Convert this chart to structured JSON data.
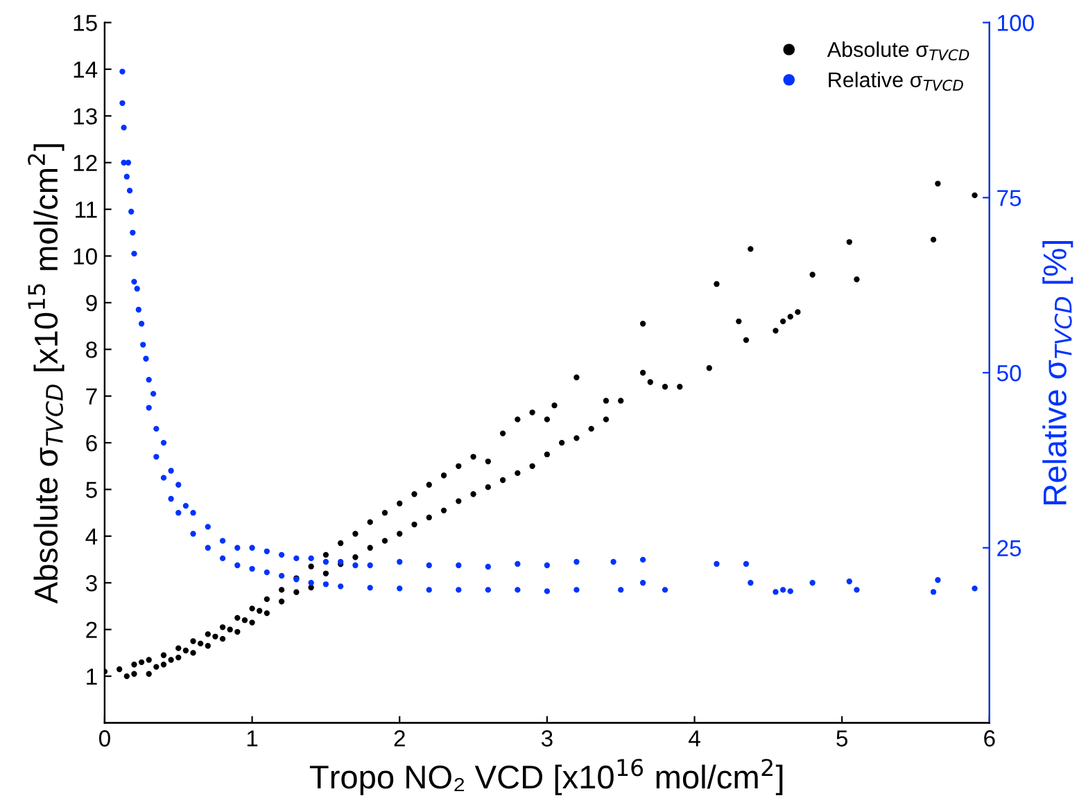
{
  "chart_data": {
    "type": "scatter",
    "xlabel": "Tropo NO₂ VCD [x10$^{16}$ mol/cm$^{2}$]",
    "ylabel": "Absolute σ$_{TVCD}$ [x10$^{15}$ mol/cm$^{2}$]",
    "y2label": "Relative σ$_{TVCD}$ [%]",
    "xlim": [
      0,
      6
    ],
    "xticks": [
      0,
      1,
      2,
      3,
      4,
      5,
      6
    ],
    "ylim": [
      0,
      15
    ],
    "yticks": [
      1,
      2,
      3,
      4,
      5,
      6,
      7,
      8,
      9,
      10,
      11,
      12,
      13,
      14,
      15
    ],
    "y2lim": [
      0,
      100
    ],
    "y2ticks": [
      25,
      50,
      75,
      100
    ],
    "grid": false,
    "legend": "top right",
    "marker": "circle",
    "series": [
      {
        "name": "Absolute σ$_{TVCD}$",
        "color": "#000000",
        "axis": "y",
        "x": [
          0.0,
          0.1,
          0.15,
          0.2,
          0.2,
          0.25,
          0.3,
          0.3,
          0.35,
          0.4,
          0.4,
          0.45,
          0.5,
          0.5,
          0.55,
          0.6,
          0.6,
          0.65,
          0.7,
          0.7,
          0.75,
          0.8,
          0.8,
          0.85,
          0.9,
          0.9,
          0.95,
          1.0,
          1.0,
          1.05,
          1.1,
          1.1,
          1.2,
          1.2,
          1.3,
          1.3,
          1.4,
          1.4,
          1.5,
          1.5,
          1.6,
          1.6,
          1.7,
          1.7,
          1.8,
          1.8,
          1.9,
          1.9,
          2.0,
          2.0,
          2.1,
          2.1,
          2.2,
          2.2,
          2.3,
          2.3,
          2.4,
          2.4,
          2.5,
          2.5,
          2.6,
          2.6,
          2.7,
          2.7,
          2.8,
          2.8,
          2.9,
          2.9,
          3.0,
          3.0,
          3.05,
          3.1,
          3.2,
          3.2,
          3.3,
          3.4,
          3.4,
          3.5,
          3.65,
          3.65,
          3.7,
          3.8,
          3.9,
          4.1,
          4.15,
          4.3,
          4.35,
          4.38,
          4.55,
          4.6,
          4.65,
          4.7,
          4.8,
          5.05,
          5.1,
          5.62,
          5.65,
          5.9
        ],
        "values": [
          1.1,
          1.15,
          1.0,
          1.25,
          1.05,
          1.3,
          1.05,
          1.35,
          1.2,
          1.45,
          1.25,
          1.35,
          1.6,
          1.4,
          1.55,
          1.75,
          1.5,
          1.7,
          1.9,
          1.65,
          1.85,
          2.05,
          1.8,
          2.0,
          2.25,
          1.95,
          2.2,
          2.45,
          2.15,
          2.4,
          2.65,
          2.35,
          2.85,
          2.6,
          3.1,
          2.8,
          3.35,
          2.9,
          3.6,
          3.2,
          3.85,
          3.4,
          4.05,
          3.55,
          4.3,
          3.75,
          4.5,
          3.9,
          4.7,
          4.05,
          4.9,
          4.25,
          5.1,
          4.4,
          5.3,
          4.55,
          5.5,
          4.75,
          5.7,
          4.9,
          5.6,
          5.05,
          6.2,
          5.2,
          6.5,
          5.35,
          6.65,
          5.5,
          6.5,
          5.75,
          6.8,
          6.0,
          7.4,
          6.1,
          6.3,
          6.9,
          6.5,
          6.9,
          8.55,
          7.5,
          7.3,
          7.2,
          7.2,
          7.6,
          9.4,
          8.6,
          8.2,
          10.15,
          8.4,
          8.6,
          8.7,
          8.8,
          9.6,
          10.3,
          9.5,
          10.35,
          11.55,
          11.3
        ]
      },
      {
        "name": "Relative σ$_{TVCD}$",
        "color": "#0033ff",
        "axis": "y2",
        "x": [
          0.12,
          0.12,
          0.13,
          0.13,
          0.15,
          0.16,
          0.17,
          0.18,
          0.19,
          0.2,
          0.2,
          0.22,
          0.23,
          0.25,
          0.26,
          0.28,
          0.3,
          0.3,
          0.33,
          0.35,
          0.35,
          0.4,
          0.4,
          0.45,
          0.45,
          0.5,
          0.5,
          0.55,
          0.6,
          0.6,
          0.7,
          0.7,
          0.8,
          0.8,
          0.9,
          0.9,
          1.0,
          1.0,
          1.1,
          1.1,
          1.2,
          1.2,
          1.3,
          1.3,
          1.4,
          1.4,
          1.5,
          1.5,
          1.6,
          1.6,
          1.7,
          1.8,
          1.8,
          2.0,
          2.0,
          2.2,
          2.2,
          2.4,
          2.4,
          2.6,
          2.6,
          2.8,
          2.8,
          3.0,
          3.0,
          3.2,
          3.2,
          3.45,
          3.5,
          3.65,
          3.65,
          3.8,
          4.15,
          4.35,
          4.38,
          4.55,
          4.6,
          4.65,
          4.8,
          5.05,
          5.1,
          5.62,
          5.65,
          5.9
        ],
        "values": [
          93,
          88.5,
          85,
          80,
          78,
          80,
          76,
          73,
          70,
          67,
          63,
          62,
          59,
          57,
          54,
          52,
          49,
          45,
          47,
          42,
          38,
          40,
          35,
          36,
          32,
          34,
          30,
          31,
          30,
          27,
          28,
          25,
          26,
          23.5,
          25,
          22.5,
          25,
          22,
          24.5,
          21.5,
          24,
          21,
          23.5,
          20.5,
          23.5,
          20,
          23,
          19.8,
          23,
          19.5,
          22.5,
          22.5,
          19.3,
          23,
          19.2,
          22.5,
          19,
          22.5,
          19,
          22.3,
          19,
          22.7,
          19,
          22.5,
          18.8,
          23,
          19,
          23,
          19,
          23.3,
          20,
          19,
          22.7,
          22.7,
          20,
          18.7,
          19,
          18.8,
          20,
          20.2,
          19,
          18.7,
          20.4,
          19.2
        ]
      }
    ]
  }
}
